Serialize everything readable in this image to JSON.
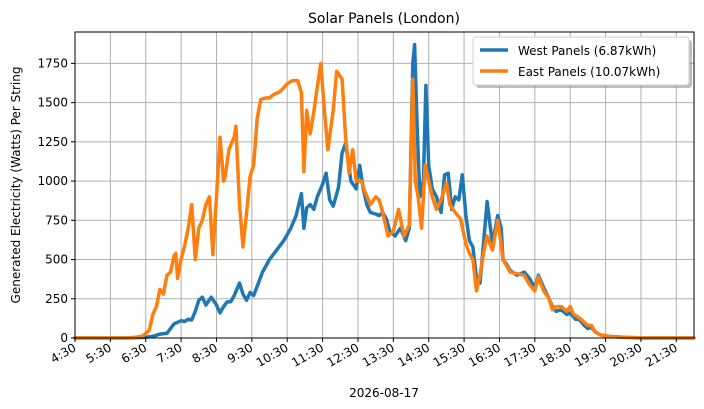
{
  "chart_data": {
    "type": "line",
    "title": "Solar Panels (London)",
    "xlabel": "2026-08-17",
    "ylabel": "Generated Electricity (Watts) Per String",
    "xlim": [
      4.5,
      22.0
    ],
    "ylim": [
      0,
      1950
    ],
    "xticks": [
      "4:30",
      "5:30",
      "6:30",
      "7:30",
      "8:30",
      "9:30",
      "10:30",
      "11:30",
      "12:30",
      "13:30",
      "14:30",
      "15:30",
      "16:30",
      "17:30",
      "18:30",
      "19:30",
      "20:30",
      "21:30"
    ],
    "yticks": [
      0,
      250,
      500,
      750,
      1000,
      1250,
      1500,
      1750
    ],
    "grid": true,
    "legend": "top-right",
    "series": [
      {
        "name": "West Panels (6.87kWh)",
        "color": "#1f77b4",
        "points": [
          [
            4.5,
            0
          ],
          [
            5.0,
            0
          ],
          [
            5.5,
            0
          ],
          [
            6.0,
            0
          ],
          [
            6.5,
            5
          ],
          [
            6.7,
            10
          ],
          [
            6.9,
            25
          ],
          [
            7.1,
            30
          ],
          [
            7.2,
            60
          ],
          [
            7.3,
            90
          ],
          [
            7.4,
            100
          ],
          [
            7.5,
            110
          ],
          [
            7.6,
            105
          ],
          [
            7.7,
            120
          ],
          [
            7.8,
            115
          ],
          [
            7.9,
            170
          ],
          [
            8.0,
            240
          ],
          [
            8.1,
            260
          ],
          [
            8.2,
            210
          ],
          [
            8.35,
            260
          ],
          [
            8.5,
            210
          ],
          [
            8.6,
            160
          ],
          [
            8.7,
            200
          ],
          [
            8.8,
            230
          ],
          [
            8.9,
            230
          ],
          [
            9.0,
            270
          ],
          [
            9.15,
            350
          ],
          [
            9.25,
            280
          ],
          [
            9.35,
            240
          ],
          [
            9.45,
            290
          ],
          [
            9.55,
            270
          ],
          [
            9.65,
            330
          ],
          [
            9.8,
            420
          ],
          [
            10.0,
            500
          ],
          [
            10.2,
            560
          ],
          [
            10.4,
            620
          ],
          [
            10.6,
            700
          ],
          [
            10.75,
            780
          ],
          [
            10.9,
            920
          ],
          [
            10.97,
            700
          ],
          [
            11.05,
            830
          ],
          [
            11.15,
            850
          ],
          [
            11.25,
            820
          ],
          [
            11.35,
            900
          ],
          [
            11.5,
            980
          ],
          [
            11.6,
            1050
          ],
          [
            11.7,
            880
          ],
          [
            11.8,
            840
          ],
          [
            11.95,
            960
          ],
          [
            12.05,
            1180
          ],
          [
            12.15,
            1240
          ],
          [
            12.3,
            1000
          ],
          [
            12.45,
            950
          ],
          [
            12.55,
            1100
          ],
          [
            12.65,
            950
          ],
          [
            12.75,
            850
          ],
          [
            12.85,
            800
          ],
          [
            13.0,
            790
          ],
          [
            13.1,
            780
          ],
          [
            13.2,
            800
          ],
          [
            13.3,
            760
          ],
          [
            13.4,
            680
          ],
          [
            13.55,
            650
          ],
          [
            13.7,
            700
          ],
          [
            13.85,
            620
          ],
          [
            13.95,
            700
          ],
          [
            14.05,
            1750
          ],
          [
            14.1,
            1870
          ],
          [
            14.18,
            1300
          ],
          [
            14.25,
            900
          ],
          [
            14.35,
            1000
          ],
          [
            14.42,
            1610
          ],
          [
            14.5,
            1100
          ],
          [
            14.6,
            950
          ],
          [
            14.72,
            900
          ],
          [
            14.85,
            800
          ],
          [
            14.95,
            1040
          ],
          [
            15.05,
            1050
          ],
          [
            15.15,
            820
          ],
          [
            15.25,
            900
          ],
          [
            15.35,
            880
          ],
          [
            15.45,
            1040
          ],
          [
            15.55,
            780
          ],
          [
            15.65,
            620
          ],
          [
            15.75,
            580
          ],
          [
            15.85,
            380
          ],
          [
            15.95,
            350
          ],
          [
            16.05,
            600
          ],
          [
            16.15,
            870
          ],
          [
            16.3,
            600
          ],
          [
            16.45,
            780
          ],
          [
            16.55,
            700
          ],
          [
            16.6,
            500
          ],
          [
            16.7,
            470
          ],
          [
            16.8,
            430
          ],
          [
            17.0,
            400
          ],
          [
            17.2,
            420
          ],
          [
            17.35,
            380
          ],
          [
            17.5,
            320
          ],
          [
            17.6,
            400
          ],
          [
            17.75,
            320
          ],
          [
            17.9,
            250
          ],
          [
            18.0,
            200
          ],
          [
            18.1,
            170
          ],
          [
            18.25,
            180
          ],
          [
            18.4,
            150
          ],
          [
            18.5,
            160
          ],
          [
            18.65,
            120
          ],
          [
            18.75,
            120
          ],
          [
            18.9,
            80
          ],
          [
            19.0,
            60
          ],
          [
            19.1,
            70
          ],
          [
            19.2,
            40
          ],
          [
            19.35,
            20
          ],
          [
            19.6,
            10
          ],
          [
            20.0,
            5
          ],
          [
            20.5,
            0
          ],
          [
            21.0,
            0
          ],
          [
            21.5,
            0
          ],
          [
            22.0,
            0
          ]
        ]
      },
      {
        "name": "East Panels (10.07kWh)",
        "color": "#ff7f0e",
        "points": [
          [
            4.5,
            0
          ],
          [
            5.0,
            0
          ],
          [
            5.5,
            0
          ],
          [
            6.0,
            0
          ],
          [
            6.2,
            5
          ],
          [
            6.4,
            10
          ],
          [
            6.6,
            50
          ],
          [
            6.7,
            150
          ],
          [
            6.8,
            200
          ],
          [
            6.9,
            310
          ],
          [
            7.0,
            280
          ],
          [
            7.1,
            400
          ],
          [
            7.2,
            420
          ],
          [
            7.3,
            520
          ],
          [
            7.35,
            540
          ],
          [
            7.4,
            380
          ],
          [
            7.5,
            500
          ],
          [
            7.6,
            590
          ],
          [
            7.7,
            700
          ],
          [
            7.8,
            850
          ],
          [
            7.9,
            500
          ],
          [
            8.0,
            700
          ],
          [
            8.1,
            750
          ],
          [
            8.2,
            850
          ],
          [
            8.3,
            900
          ],
          [
            8.4,
            530
          ],
          [
            8.5,
            900
          ],
          [
            8.6,
            1280
          ],
          [
            8.7,
            1000
          ],
          [
            8.75,
            1030
          ],
          [
            8.85,
            1200
          ],
          [
            9.0,
            1280
          ],
          [
            9.05,
            1350
          ],
          [
            9.15,
            850
          ],
          [
            9.25,
            580
          ],
          [
            9.35,
            800
          ],
          [
            9.45,
            1030
          ],
          [
            9.55,
            1100
          ],
          [
            9.65,
            1400
          ],
          [
            9.75,
            1520
          ],
          [
            9.9,
            1530
          ],
          [
            10.0,
            1530
          ],
          [
            10.1,
            1550
          ],
          [
            10.3,
            1570
          ],
          [
            10.5,
            1620
          ],
          [
            10.65,
            1640
          ],
          [
            10.8,
            1640
          ],
          [
            10.9,
            1560
          ],
          [
            10.97,
            1060
          ],
          [
            11.05,
            1450
          ],
          [
            11.15,
            1300
          ],
          [
            11.25,
            1440
          ],
          [
            11.35,
            1600
          ],
          [
            11.45,
            1750
          ],
          [
            11.55,
            1450
          ],
          [
            11.65,
            1200
          ],
          [
            11.8,
            1450
          ],
          [
            11.9,
            1700
          ],
          [
            12.05,
            1650
          ],
          [
            12.15,
            1280
          ],
          [
            12.25,
            1050
          ],
          [
            12.35,
            1200
          ],
          [
            12.45,
            1000
          ],
          [
            12.6,
            1000
          ],
          [
            12.7,
            930
          ],
          [
            12.85,
            850
          ],
          [
            13.0,
            900
          ],
          [
            13.1,
            880
          ],
          [
            13.2,
            800
          ],
          [
            13.35,
            650
          ],
          [
            13.5,
            680
          ],
          [
            13.65,
            820
          ],
          [
            13.8,
            650
          ],
          [
            13.95,
            720
          ],
          [
            14.05,
            1650
          ],
          [
            14.12,
            1000
          ],
          [
            14.2,
            900
          ],
          [
            14.3,
            700
          ],
          [
            14.4,
            1100
          ],
          [
            14.5,
            1000
          ],
          [
            14.6,
            900
          ],
          [
            14.72,
            820
          ],
          [
            14.85,
            880
          ],
          [
            15.0,
            990
          ],
          [
            15.1,
            850
          ],
          [
            15.25,
            800
          ],
          [
            15.4,
            760
          ],
          [
            15.55,
            600
          ],
          [
            15.65,
            540
          ],
          [
            15.75,
            500
          ],
          [
            15.85,
            300
          ],
          [
            15.95,
            400
          ],
          [
            16.05,
            540
          ],
          [
            16.15,
            650
          ],
          [
            16.3,
            560
          ],
          [
            16.45,
            750
          ],
          [
            16.55,
            600
          ],
          [
            16.6,
            500
          ],
          [
            16.7,
            460
          ],
          [
            16.8,
            420
          ],
          [
            17.0,
            410
          ],
          [
            17.2,
            400
          ],
          [
            17.35,
            340
          ],
          [
            17.5,
            300
          ],
          [
            17.6,
            390
          ],
          [
            17.75,
            300
          ],
          [
            17.9,
            250
          ],
          [
            18.0,
            180
          ],
          [
            18.1,
            200
          ],
          [
            18.25,
            200
          ],
          [
            18.4,
            170
          ],
          [
            18.5,
            200
          ],
          [
            18.6,
            150
          ],
          [
            18.75,
            130
          ],
          [
            18.9,
            100
          ],
          [
            19.0,
            80
          ],
          [
            19.1,
            80
          ],
          [
            19.2,
            40
          ],
          [
            19.35,
            20
          ],
          [
            19.6,
            10
          ],
          [
            20.0,
            5
          ],
          [
            20.5,
            0
          ],
          [
            21.0,
            0
          ],
          [
            21.5,
            0
          ],
          [
            22.0,
            0
          ]
        ]
      }
    ]
  }
}
